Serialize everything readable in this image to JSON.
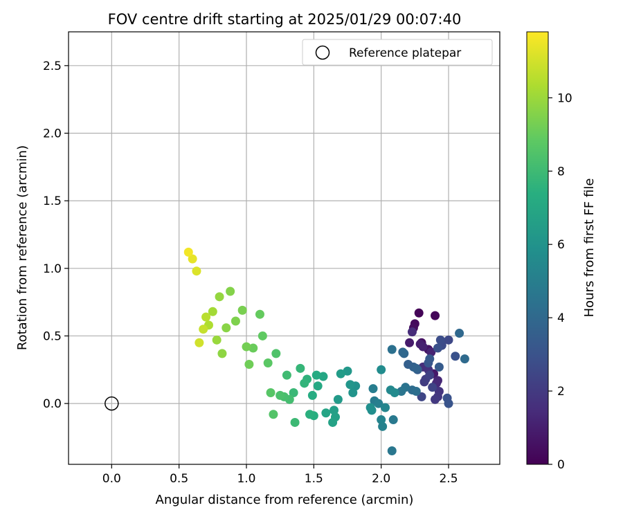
{
  "chart_data": {
    "type": "scatter",
    "title": "FOV centre drift starting at 2025/01/29 00:07:40",
    "xlabel": "Angular distance from reference (arcmin)",
    "ylabel": "Rotation from reference (arcmin)",
    "xlim": [
      -0.32,
      2.88
    ],
    "ylim": [
      -0.45,
      2.75
    ],
    "xticks": [
      "0.0",
      "0.5",
      "1.0",
      "1.5",
      "2.0",
      "2.5"
    ],
    "yticks": [
      "0.0",
      "0.5",
      "1.0",
      "1.5",
      "2.0",
      "2.5"
    ],
    "grid": true,
    "legend": {
      "placement": "top-right",
      "entries": [
        "Reference platepar"
      ]
    },
    "reference_point": {
      "x": 0.0,
      "y": 0.0
    },
    "colorbar": {
      "label": "Hours from first FF file",
      "colormap": "viridis",
      "range": [
        0,
        11.8
      ],
      "ticks": [
        "0",
        "2",
        "4",
        "6",
        "8",
        "10"
      ]
    },
    "series": [
      {
        "points": [
          [
            2.28,
            0.67,
            0.1
          ],
          [
            2.4,
            0.65,
            0.2
          ],
          [
            2.25,
            0.59,
            0.3
          ],
          [
            2.24,
            0.56,
            0.4
          ],
          [
            2.3,
            0.45,
            0.5
          ],
          [
            2.35,
            0.4,
            0.6
          ],
          [
            2.37,
            0.38,
            0.7
          ],
          [
            2.39,
            0.22,
            0.8
          ],
          [
            2.21,
            0.45,
            0.9
          ],
          [
            2.29,
            0.44,
            1.0
          ],
          [
            2.31,
            0.42,
            1.1
          ],
          [
            2.37,
            0.38,
            1.2
          ],
          [
            2.42,
            0.17,
            1.3
          ],
          [
            2.41,
            0.15,
            1.4
          ],
          [
            2.23,
            0.53,
            1.5
          ],
          [
            2.31,
            0.27,
            1.6
          ],
          [
            2.35,
            0.25,
            1.7
          ],
          [
            2.43,
            0.09,
            1.8
          ],
          [
            2.42,
            0.05,
            1.9
          ],
          [
            2.4,
            0.03,
            2.0
          ],
          [
            2.32,
            0.16,
            2.1
          ],
          [
            2.33,
            0.18,
            2.2
          ],
          [
            2.36,
            0.21,
            2.3
          ],
          [
            2.38,
            0.12,
            2.4
          ],
          [
            2.3,
            0.05,
            2.5
          ],
          [
            2.5,
            0.47,
            2.6
          ],
          [
            2.45,
            0.43,
            2.7
          ],
          [
            2.44,
            0.47,
            2.8
          ],
          [
            2.42,
            0.41,
            2.9
          ],
          [
            2.55,
            0.35,
            3.0
          ],
          [
            2.49,
            0.04,
            3.0
          ],
          [
            2.5,
            0.0,
            3.1
          ],
          [
            2.35,
            0.3,
            3.2
          ],
          [
            2.36,
            0.33,
            3.3
          ],
          [
            2.43,
            0.27,
            3.4
          ],
          [
            2.27,
            0.25,
            3.5
          ],
          [
            2.2,
            0.29,
            3.6
          ],
          [
            2.24,
            0.27,
            3.7
          ],
          [
            2.26,
            0.26,
            3.8
          ],
          [
            2.17,
            0.37,
            3.9
          ],
          [
            2.16,
            0.38,
            4.0
          ],
          [
            2.58,
            0.52,
            4.0
          ],
          [
            2.62,
            0.33,
            4.1
          ],
          [
            2.23,
            0.1,
            4.2
          ],
          [
            2.26,
            0.09,
            4.3
          ],
          [
            2.08,
            0.4,
            4.4
          ],
          [
            2.18,
            0.12,
            4.5
          ],
          [
            2.15,
            0.09,
            4.6
          ],
          [
            2.08,
            -0.35,
            4.7
          ],
          [
            2.09,
            -0.12,
            4.8
          ],
          [
            1.95,
            0.02,
            4.9
          ],
          [
            1.94,
            0.11,
            5.0
          ],
          [
            1.98,
            0.0,
            5.1
          ],
          [
            2.01,
            -0.17,
            5.2
          ],
          [
            2.0,
            -0.12,
            5.3
          ],
          [
            2.03,
            -0.03,
            5.4
          ],
          [
            2.07,
            0.1,
            5.5
          ],
          [
            2.1,
            0.08,
            5.6
          ],
          [
            2.0,
            0.25,
            5.7
          ],
          [
            1.93,
            -0.05,
            5.8
          ],
          [
            1.92,
            -0.03,
            5.9
          ],
          [
            1.81,
            0.13,
            6.0
          ],
          [
            1.79,
            0.08,
            6.1
          ],
          [
            1.77,
            0.14,
            6.2
          ],
          [
            1.75,
            0.24,
            6.3
          ],
          [
            1.68,
            0.03,
            6.4
          ],
          [
            1.7,
            0.22,
            6.5
          ],
          [
            1.65,
            -0.05,
            6.6
          ],
          [
            1.66,
            -0.1,
            6.7
          ],
          [
            1.64,
            -0.14,
            6.8
          ],
          [
            1.59,
            -0.07,
            6.9
          ],
          [
            1.57,
            0.2,
            7.0
          ],
          [
            1.53,
            0.13,
            7.1
          ],
          [
            1.52,
            0.21,
            7.2
          ],
          [
            1.49,
            0.06,
            7.3
          ],
          [
            1.5,
            -0.09,
            7.4
          ],
          [
            1.47,
            -0.08,
            7.5
          ],
          [
            1.45,
            0.18,
            7.6
          ],
          [
            1.43,
            0.15,
            7.7
          ],
          [
            1.4,
            0.26,
            7.8
          ],
          [
            1.35,
            0.08,
            7.9
          ],
          [
            1.36,
            -0.14,
            8.0
          ],
          [
            1.3,
            0.21,
            8.1
          ],
          [
            1.32,
            0.03,
            8.2
          ],
          [
            1.28,
            0.05,
            8.3
          ],
          [
            1.25,
            0.06,
            8.4
          ],
          [
            1.22,
            0.37,
            8.5
          ],
          [
            1.2,
            -0.08,
            8.6
          ],
          [
            1.18,
            0.08,
            8.7
          ],
          [
            1.16,
            0.3,
            8.8
          ],
          [
            1.12,
            0.5,
            8.9
          ],
          [
            1.1,
            0.66,
            9.0
          ],
          [
            1.05,
            0.41,
            9.1
          ],
          [
            1.02,
            0.29,
            9.2
          ],
          [
            1.0,
            0.42,
            9.3
          ],
          [
            0.97,
            0.69,
            9.4
          ],
          [
            0.92,
            0.61,
            9.5
          ],
          [
            0.88,
            0.83,
            9.6
          ],
          [
            0.85,
            0.56,
            9.7
          ],
          [
            0.82,
            0.37,
            9.8
          ],
          [
            0.8,
            0.79,
            9.9
          ],
          [
            0.78,
            0.47,
            10.0
          ],
          [
            0.75,
            0.68,
            10.2
          ],
          [
            0.72,
            0.58,
            10.4
          ],
          [
            0.7,
            0.64,
            10.6
          ],
          [
            0.68,
            0.55,
            10.8
          ],
          [
            0.65,
            0.45,
            11.0
          ],
          [
            0.63,
            0.98,
            11.2
          ],
          [
            0.6,
            1.07,
            11.4
          ],
          [
            0.57,
            1.12,
            11.6
          ]
        ]
      }
    ]
  }
}
